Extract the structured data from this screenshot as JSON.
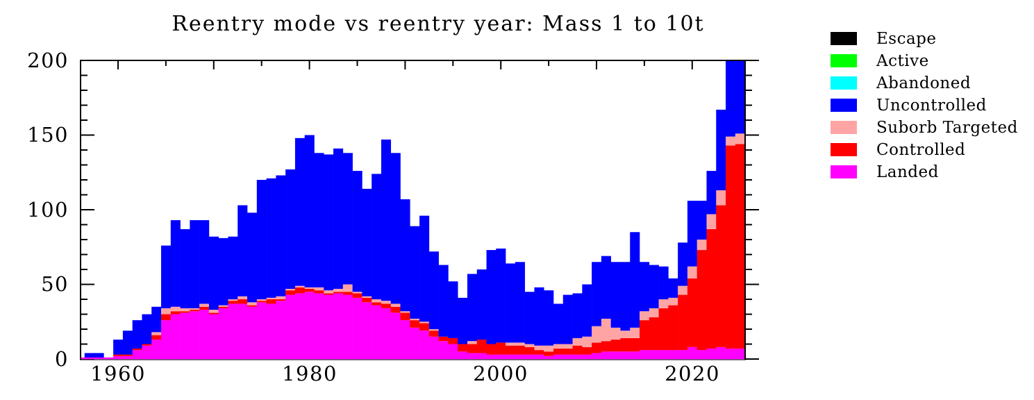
{
  "chart_data": {
    "type": "bar",
    "stacked": true,
    "title": "Reentry mode vs reentry year: Mass 1 to 10t",
    "xlabel": "",
    "ylabel": "",
    "xlim": [
      1956,
      2025.5
    ],
    "ylim": [
      0,
      200
    ],
    "grid": false,
    "legend_position": "right-outside",
    "x_ticks": [
      1960,
      1980,
      2000,
      2020
    ],
    "x_tick_labels": [
      "1960",
      "1980",
      "2000",
      "2020"
    ],
    "x_minor_tick_step_years": 5,
    "y_ticks": [
      0,
      50,
      100,
      150,
      200
    ],
    "y_tick_labels": [
      "0",
      "50",
      "100",
      "150",
      "200"
    ],
    "y_minor_tick_step": 10,
    "note": "Stacked annual histogram; bars for 2024 and 2025 exceed the axis and are clipped at 200; baseline drawn in magenta.",
    "years": [
      1957,
      1958,
      1959,
      1960,
      1961,
      1962,
      1963,
      1964,
      1965,
      1966,
      1967,
      1968,
      1969,
      1970,
      1971,
      1972,
      1973,
      1974,
      1975,
      1976,
      1977,
      1978,
      1979,
      1980,
      1981,
      1982,
      1983,
      1984,
      1985,
      1986,
      1987,
      1988,
      1989,
      1990,
      1991,
      1992,
      1993,
      1994,
      1995,
      1996,
      1997,
      1998,
      1999,
      2000,
      2001,
      2002,
      2003,
      2004,
      2005,
      2006,
      2007,
      2008,
      2009,
      2010,
      2011,
      2012,
      2013,
      2014,
      2015,
      2016,
      2017,
      2018,
      2019,
      2020,
      2021,
      2022,
      2023,
      2024,
      2025
    ],
    "series": [
      {
        "name": "Landed",
        "color": "#FF00FF",
        "values": [
          0,
          0,
          0,
          2,
          2,
          6,
          9,
          13,
          26,
          30,
          31,
          32,
          33,
          30,
          34,
          37,
          37,
          35,
          38,
          37,
          39,
          43,
          44,
          45,
          44,
          43,
          44,
          43,
          41,
          38,
          36,
          34,
          31,
          26,
          21,
          19,
          15,
          12,
          10,
          5,
          4,
          4,
          3,
          3,
          3,
          3,
          3,
          3,
          2,
          3,
          3,
          3,
          3,
          4,
          5,
          5,
          5,
          5,
          6,
          6,
          6,
          6,
          6,
          8,
          6,
          7,
          8,
          7,
          7
        ]
      },
      {
        "name": "Controlled",
        "color": "#FF0000",
        "values": [
          0,
          0,
          0,
          1,
          1,
          1,
          1,
          3,
          4,
          2,
          1,
          1,
          2,
          1,
          1,
          2,
          3,
          1,
          1,
          3,
          1,
          3,
          4,
          2,
          2,
          1,
          1,
          2,
          3,
          3,
          2,
          3,
          4,
          5,
          5,
          5,
          4,
          3,
          4,
          5,
          6,
          9,
          7,
          8,
          6,
          6,
          5,
          3,
          3,
          4,
          4,
          6,
          5,
          7,
          7,
          8,
          9,
          9,
          20,
          22,
          28,
          30,
          37,
          46,
          67,
          80,
          95,
          136,
          137
        ]
      },
      {
        "name": "Suborb Targeted",
        "color": "#FFA4A4",
        "values": [
          0,
          0,
          0,
          0,
          0,
          0,
          0,
          2,
          4,
          3,
          2,
          1,
          2,
          2,
          1,
          1,
          2,
          2,
          1,
          1,
          2,
          1,
          1,
          1,
          2,
          2,
          2,
          5,
          1,
          1,
          2,
          2,
          2,
          1,
          1,
          1,
          1,
          0,
          0,
          0,
          2,
          0,
          0,
          0,
          2,
          2,
          2,
          3,
          4,
          3,
          3,
          5,
          7,
          11,
          15,
          8,
          5,
          7,
          6,
          6,
          6,
          5,
          6,
          8,
          7,
          10,
          10,
          6,
          7
        ]
      },
      {
        "name": "Uncontrolled",
        "color": "#0000FF",
        "values": [
          4,
          4,
          0,
          10,
          16,
          19,
          20,
          17,
          42,
          58,
          53,
          59,
          56,
          49,
          45,
          42,
          61,
          60,
          80,
          80,
          81,
          80,
          99,
          102,
          90,
          91,
          94,
          88,
          81,
          72,
          84,
          108,
          101,
          75,
          62,
          71,
          52,
          48,
          38,
          31,
          45,
          47,
          63,
          63,
          53,
          54,
          35,
          39,
          37,
          27,
          33,
          30,
          35,
          43,
          42,
          44,
          46,
          64,
          33,
          29,
          22,
          13,
          29,
          44,
          26,
          29,
          54,
          51,
          49
        ]
      },
      {
        "name": "Abandoned",
        "color": "#00FFFF",
        "values": []
      },
      {
        "name": "Active",
        "color": "#00FF00",
        "values": []
      },
      {
        "name": "Escape",
        "color": "#000000",
        "values": []
      }
    ]
  },
  "legend": {
    "items": [
      {
        "label": "Escape",
        "color": "#000000"
      },
      {
        "label": "Active",
        "color": "#00FF00"
      },
      {
        "label": "Abandoned",
        "color": "#00FFFF"
      },
      {
        "label": "Uncontrolled",
        "color": "#0000FF"
      },
      {
        "label": "Suborb Targeted",
        "color": "#FFA4A4"
      },
      {
        "label": "Controlled",
        "color": "#FF0000"
      },
      {
        "label": "Landed",
        "color": "#FF00FF"
      }
    ]
  },
  "colors": {
    "axis": "#000000",
    "baseline": "#FF00FF",
    "background": "#FFFFFF"
  }
}
